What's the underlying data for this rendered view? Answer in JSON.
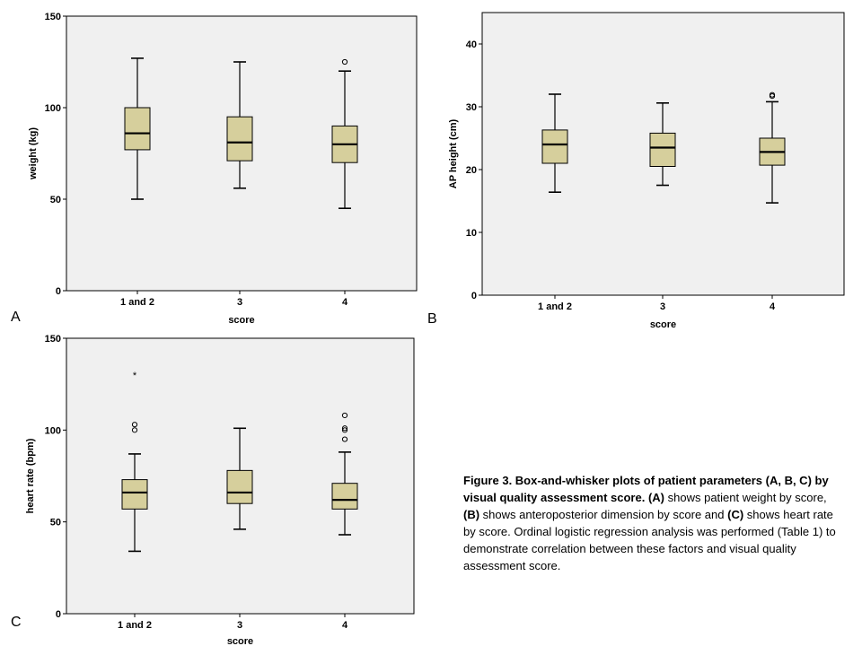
{
  "chart_data": [
    {
      "type": "box",
      "panel": "A",
      "xlabel": "score",
      "ylabel": "weight (kg)",
      "ylim": [
        0,
        150
      ],
      "yticks": [
        0,
        50,
        100,
        150
      ],
      "grid": false,
      "categories": [
        "1 and 2",
        "3",
        "4"
      ],
      "boxes": [
        {
          "category": "1 and 2",
          "min": 50,
          "q1": 77,
          "median": 86,
          "q3": 100,
          "max": 127,
          "outliers": [],
          "extremes": []
        },
        {
          "category": "3",
          "min": 56,
          "q1": 71,
          "median": 81,
          "q3": 95,
          "max": 125,
          "outliers": [],
          "extremes": []
        },
        {
          "category": "4",
          "min": 45,
          "q1": 70,
          "median": 80,
          "q3": 90,
          "max": 120,
          "outliers": [
            125
          ],
          "extremes": []
        }
      ]
    },
    {
      "type": "box",
      "panel": "B",
      "xlabel": "score",
      "ylabel": "AP height (cm)",
      "ylim": [
        0,
        45
      ],
      "yticks": [
        0,
        10,
        20,
        30,
        40
      ],
      "grid": false,
      "categories": [
        "1 and 2",
        "3",
        "4"
      ],
      "boxes": [
        {
          "category": "1 and 2",
          "min": 16.4,
          "q1": 21,
          "median": 24,
          "q3": 26.3,
          "max": 32,
          "outliers": [],
          "extremes": []
        },
        {
          "category": "3",
          "min": 17.5,
          "q1": 20.5,
          "median": 23.5,
          "q3": 25.8,
          "max": 30.6,
          "outliers": [],
          "extremes": []
        },
        {
          "category": "4",
          "min": 14.7,
          "q1": 20.7,
          "median": 22.8,
          "q3": 25,
          "max": 30.8,
          "outliers": [
            31.7,
            31.9
          ],
          "extremes": []
        }
      ]
    },
    {
      "type": "box",
      "panel": "C",
      "xlabel": "score",
      "ylabel": "heart rate (bpm)",
      "ylim": [
        0,
        150
      ],
      "yticks": [
        0,
        50,
        100,
        150
      ],
      "grid": false,
      "categories": [
        "1 and 2",
        "3",
        "4"
      ],
      "boxes": [
        {
          "category": "1 and 2",
          "min": 34,
          "q1": 57,
          "median": 66,
          "q3": 73,
          "max": 87,
          "outliers": [
            100,
            103
          ],
          "extremes": [
            130
          ]
        },
        {
          "category": "3",
          "min": 46,
          "q1": 60,
          "median": 66,
          "q3": 78,
          "max": 101,
          "outliers": [],
          "extremes": []
        },
        {
          "category": "4",
          "min": 43,
          "q1": 57,
          "median": 62,
          "q3": 71,
          "max": 88,
          "outliers": [
            95,
            100,
            101,
            108
          ],
          "extremes": []
        }
      ]
    }
  ],
  "colors": {
    "plot_bg": "#f0f0f0",
    "box_fill": "#d6cf9c",
    "ink": "#000000"
  },
  "caption": {
    "label": "Figure 3. Box-and-whisker plots of patient parameters (A, B, C) by visual quality assessment score.",
    "tag_a": "(A)",
    "text_a": "shows patient weight by score,",
    "tag_b": "(B)",
    "text_b": "shows anteroposterior dimension by score and",
    "tag_c": "(C)",
    "text_c": "shows heart rate by score. Ordinal logistic regression analysis was performed (Table 1) to demonstrate correlation between these factors and visual quality assessment score."
  }
}
